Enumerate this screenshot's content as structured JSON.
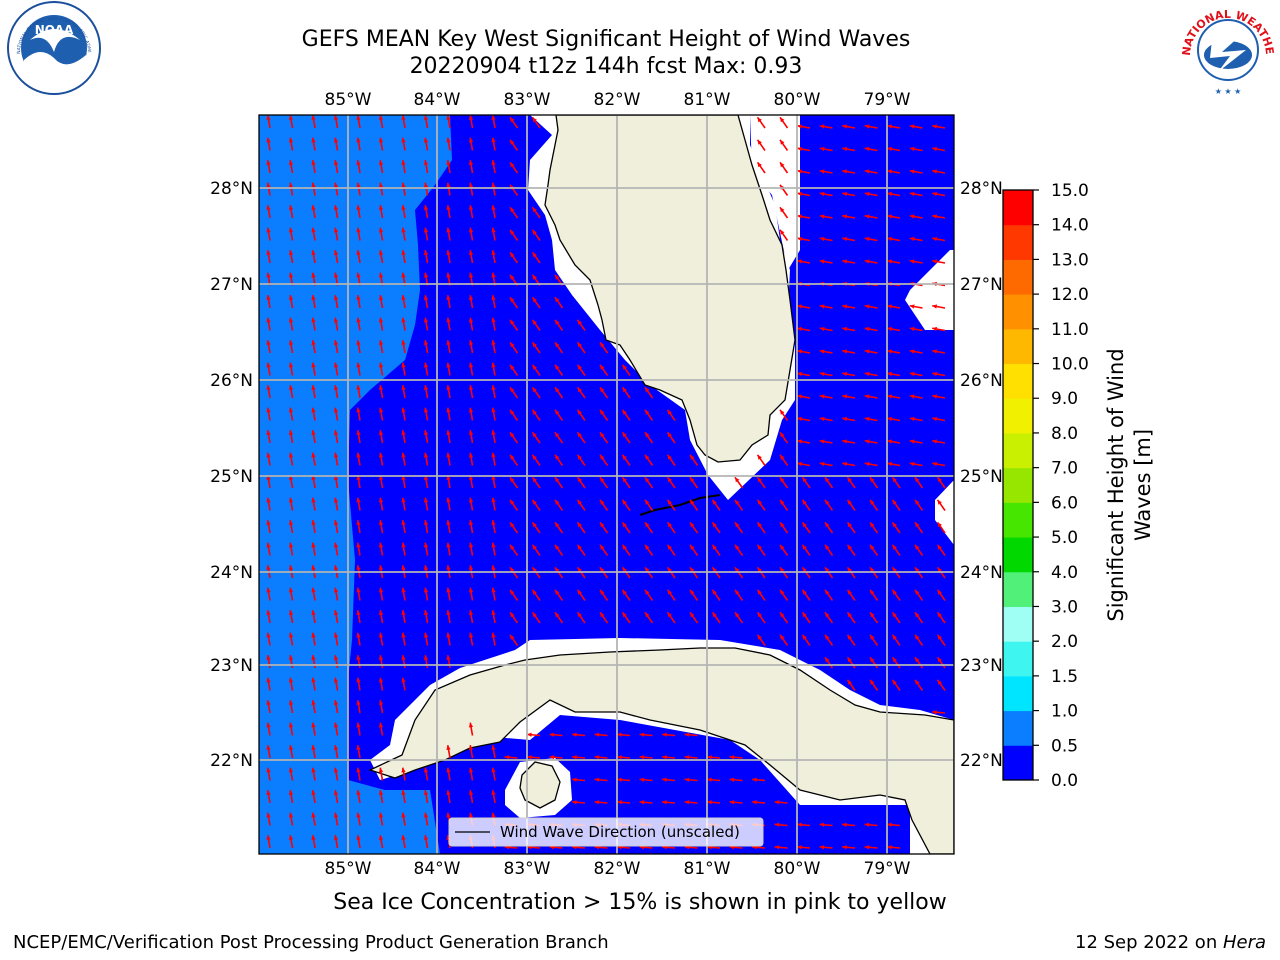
{
  "title_line1": "GEFS MEAN Key West Significant Height of Wind Waves",
  "title_line2": "20220904 t12z 144h fcst   Max: 0.93",
  "caption": "Sea Ice Concentration > 15% is shown in pink to yellow",
  "footer_left": "NCEP/EMC/Verification Post Processing Product Generation Branch",
  "footer_right_date": "12 Sep 2022 on ",
  "footer_right_host": "Hera",
  "legend_label": "Wind Wave Direction (unscaled)",
  "lon_labels": [
    "85°W",
    "84°W",
    "83°W",
    "82°W",
    "81°W",
    "80°W",
    "79°W"
  ],
  "lat_labels": [
    "28°N",
    "27°N",
    "26°N",
    "25°N",
    "24°N",
    "23°N",
    "22°N"
  ],
  "colorbar": {
    "label_line1": "Significant Height of Wind",
    "label_line2": "Waves [m]",
    "ticks": [
      "0.0",
      "0.5",
      "1.0",
      "1.5",
      "2.0",
      "3.0",
      "4.0",
      "5.0",
      "6.0",
      "7.0",
      "8.0",
      "9.0",
      "10.0",
      "11.0",
      "12.0",
      "13.0",
      "14.0",
      "15.0"
    ],
    "colors": [
      "#0000ff",
      "#0a7eff",
      "#00e5ff",
      "#3ff5f0",
      "#9ffff5",
      "#50f079",
      "#00d800",
      "#46e600",
      "#96e600",
      "#c8f000",
      "#f0f000",
      "#ffe000",
      "#ffb800",
      "#ff9000",
      "#ff6a00",
      "#ff3800",
      "#ff0000"
    ]
  },
  "colors": {
    "sea_dark": "#0000ff",
    "sea_light": "#0a7eff",
    "land": "#efefdc",
    "arrow": "#ff0000",
    "grid": "#b4b4b4"
  },
  "logos": {
    "noaa_text": "NOAA",
    "noaa_ring": "NATIONAL OCEANIC AND ATMOSPHERIC ADMINISTRATION · U.S. DEPARTMENT OF COMMERCE",
    "nws_ring": "NATIONAL WEATHER SERVICE"
  }
}
